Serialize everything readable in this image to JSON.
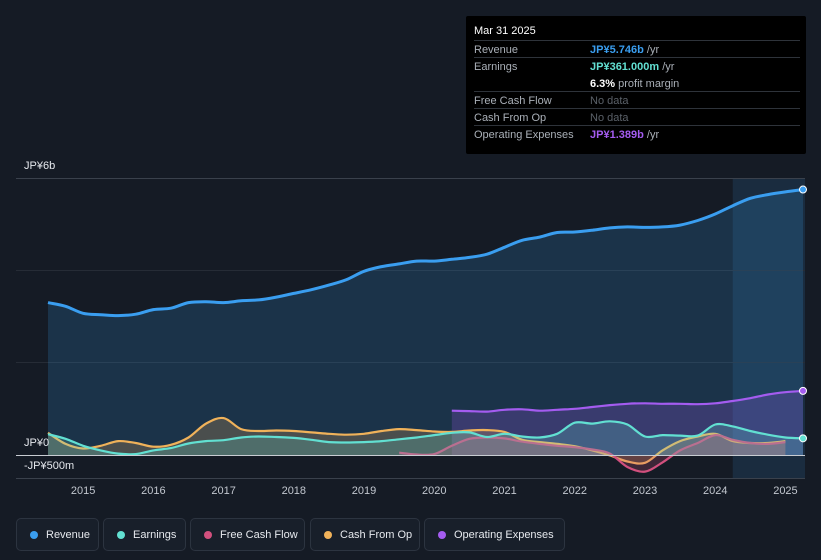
{
  "tooltip": {
    "date": "Mar 31 2025",
    "rows": [
      {
        "label": "Revenue",
        "value": "JP¥5.746b",
        "unit": "/yr",
        "color": "#3a9ef0"
      },
      {
        "label": "Earnings",
        "value": "JP¥361.000m",
        "unit": "/yr",
        "color": "#62e0d2"
      },
      {
        "label": "",
        "value": "6.3%",
        "unit": "profit margin",
        "color": "#ffffff"
      },
      {
        "label": "Free Cash Flow",
        "value": "No data"
      },
      {
        "label": "Cash From Op",
        "value": "No data"
      },
      {
        "label": "Operating Expenses",
        "value": "JP¥1.389b",
        "unit": "/yr",
        "color": "#a45cf0"
      }
    ]
  },
  "chart_data": {
    "type": "line",
    "title": "",
    "y_labels": [
      "JP¥6b",
      "JP¥0",
      "-JP¥500m"
    ],
    "ylim": [
      -500000000,
      6000000000
    ],
    "x_ticks": [
      "2015",
      "2016",
      "2017",
      "2018",
      "2019",
      "2020",
      "2021",
      "2022",
      "2023",
      "2024",
      "2025"
    ],
    "xlim": [
      2014.5,
      2025.25
    ],
    "highlight_start": 2024.25,
    "series": [
      {
        "name": "Revenue",
        "color": "#3a9ef0",
        "fill": true,
        "x": [
          2014.5,
          2014.75,
          2015.0,
          2015.25,
          2015.5,
          2015.75,
          2016.0,
          2016.25,
          2016.5,
          2016.75,
          2017.0,
          2017.25,
          2017.5,
          2017.75,
          2018.0,
          2018.25,
          2018.5,
          2018.75,
          2019.0,
          2019.25,
          2019.5,
          2019.75,
          2020.0,
          2020.25,
          2020.5,
          2020.75,
          2021.0,
          2021.25,
          2021.5,
          2021.75,
          2022.0,
          2022.25,
          2022.5,
          2022.75,
          2023.0,
          2023.25,
          2023.5,
          2023.75,
          2024.0,
          2024.25,
          2024.5,
          2024.75,
          2025.0,
          2025.25
        ],
        "values": [
          3300000000.0,
          3220000000.0,
          3070000000.0,
          3040000000.0,
          3020000000.0,
          3050000000.0,
          3150000000.0,
          3180000000.0,
          3300000000.0,
          3320000000.0,
          3300000000.0,
          3340000000.0,
          3360000000.0,
          3420000000.0,
          3500000000.0,
          3580000000.0,
          3680000000.0,
          3800000000.0,
          3980000000.0,
          4080000000.0,
          4140000000.0,
          4200000000.0,
          4200000000.0,
          4240000000.0,
          4280000000.0,
          4350000000.0,
          4500000000.0,
          4650000000.0,
          4720000000.0,
          4820000000.0,
          4830000000.0,
          4870000000.0,
          4920000000.0,
          4940000000.0,
          4930000000.0,
          4940000000.0,
          4980000000.0,
          5080000000.0,
          5220000000.0,
          5400000000.0,
          5560000000.0,
          5640000000.0,
          5700000000.0,
          5750000000.0
        ]
      },
      {
        "name": "Earnings",
        "color": "#62e0d2",
        "fill": true,
        "x": [
          2014.5,
          2014.75,
          2015.0,
          2015.25,
          2015.5,
          2015.75,
          2016.0,
          2016.25,
          2016.5,
          2016.75,
          2017.0,
          2017.25,
          2017.5,
          2017.75,
          2018.0,
          2018.25,
          2018.5,
          2018.75,
          2019.0,
          2019.25,
          2019.5,
          2019.75,
          2020.0,
          2020.25,
          2020.5,
          2020.75,
          2021.0,
          2021.25,
          2021.5,
          2021.75,
          2022.0,
          2022.25,
          2022.5,
          2022.75,
          2023.0,
          2023.25,
          2023.5,
          2023.75,
          2024.0,
          2024.25,
          2024.5,
          2024.75,
          2025.0,
          2025.25
        ],
        "values": [
          450000000.0,
          350000000.0,
          200000000.0,
          100000000.0,
          30000000.0,
          20000000.0,
          100000000.0,
          150000000.0,
          250000000.0,
          300000000.0,
          320000000.0,
          380000000.0,
          400000000.0,
          390000000.0,
          370000000.0,
          330000000.0,
          280000000.0,
          270000000.0,
          280000000.0,
          300000000.0,
          340000000.0,
          380000000.0,
          430000000.0,
          480000000.0,
          490000000.0,
          390000000.0,
          460000000.0,
          400000000.0,
          380000000.0,
          460000000.0,
          700000000.0,
          680000000.0,
          730000000.0,
          660000000.0,
          400000000.0,
          430000000.0,
          420000000.0,
          420000000.0,
          660000000.0,
          620000000.0,
          520000000.0,
          440000000.0,
          380000000.0,
          361000000.0
        ]
      },
      {
        "name": "Free Cash Flow",
        "color": "#d2507e",
        "fill": true,
        "x": [
          2019.5,
          2019.75,
          2020.0,
          2020.25,
          2020.5,
          2020.75,
          2021.0,
          2021.25,
          2021.5,
          2021.75,
          2022.0,
          2022.25,
          2022.5,
          2022.75,
          2023.0,
          2023.25,
          2023.5,
          2023.75,
          2024.0,
          2024.25,
          2024.5,
          2024.75,
          2025.0
        ],
        "values": [
          50000000.0,
          10000000.0,
          20000000.0,
          200000000.0,
          350000000.0,
          380000000.0,
          360000000.0,
          290000000.0,
          240000000.0,
          200000000.0,
          170000000.0,
          120000000.0,
          30000000.0,
          -260000000.0,
          -360000000.0,
          -160000000.0,
          100000000.0,
          260000000.0,
          430000000.0,
          330000000.0,
          260000000.0,
          240000000.0,
          280000000.0
        ]
      },
      {
        "name": "Cash From Op",
        "color": "#f0b25a",
        "fill": true,
        "x": [
          2014.5,
          2014.75,
          2015.0,
          2015.25,
          2015.5,
          2015.75,
          2016.0,
          2016.25,
          2016.5,
          2016.75,
          2017.0,
          2017.25,
          2017.5,
          2017.75,
          2018.0,
          2018.25,
          2018.5,
          2018.75,
          2019.0,
          2019.25,
          2019.5,
          2019.75,
          2020.0,
          2020.25,
          2020.5,
          2020.75,
          2021.0,
          2021.25,
          2021.5,
          2021.75,
          2022.0,
          2022.25,
          2022.5,
          2022.75,
          2023.0,
          2023.25,
          2023.5,
          2023.75,
          2024.0,
          2024.25,
          2024.5,
          2024.75,
          2025.0
        ],
        "values": [
          480000000.0,
          240000000.0,
          140000000.0,
          200000000.0,
          300000000.0,
          260000000.0,
          180000000.0,
          220000000.0,
          380000000.0,
          680000000.0,
          800000000.0,
          560000000.0,
          520000000.0,
          530000000.0,
          520000000.0,
          490000000.0,
          460000000.0,
          440000000.0,
          460000000.0,
          520000000.0,
          560000000.0,
          540000000.0,
          510000000.0,
          500000000.0,
          530000000.0,
          540000000.0,
          500000000.0,
          330000000.0,
          280000000.0,
          240000000.0,
          190000000.0,
          100000000.0,
          -10000000.0,
          -140000000.0,
          -170000000.0,
          100000000.0,
          300000000.0,
          400000000.0,
          460000000.0,
          300000000.0,
          260000000.0,
          260000000.0,
          300000000.0
        ]
      },
      {
        "name": "Operating Expenses",
        "color": "#a45cf0",
        "fill": true,
        "x": [
          2020.25,
          2020.5,
          2020.75,
          2021.0,
          2021.25,
          2021.5,
          2021.75,
          2022.0,
          2022.25,
          2022.5,
          2022.75,
          2023.0,
          2023.25,
          2023.5,
          2023.75,
          2024.0,
          2024.25,
          2024.5,
          2024.75,
          2025.0,
          2025.25
        ],
        "values": [
          960000000.0,
          950000000.0,
          940000000.0,
          980000000.0,
          990000000.0,
          960000000.0,
          980000000.0,
          1000000000.0,
          1040000000.0,
          1080000000.0,
          1110000000.0,
          1120000000.0,
          1110000000.0,
          1110000000.0,
          1100000000.0,
          1120000000.0,
          1170000000.0,
          1230000000.0,
          1310000000.0,
          1360000000.0,
          1389000000.0
        ]
      }
    ]
  },
  "legend": [
    {
      "label": "Revenue",
      "color": "#3a9ef0"
    },
    {
      "label": "Earnings",
      "color": "#62e0d2"
    },
    {
      "label": "Free Cash Flow",
      "color": "#d2507e"
    },
    {
      "label": "Cash From Op",
      "color": "#f0b25a"
    },
    {
      "label": "Operating Expenses",
      "color": "#a45cf0"
    }
  ]
}
